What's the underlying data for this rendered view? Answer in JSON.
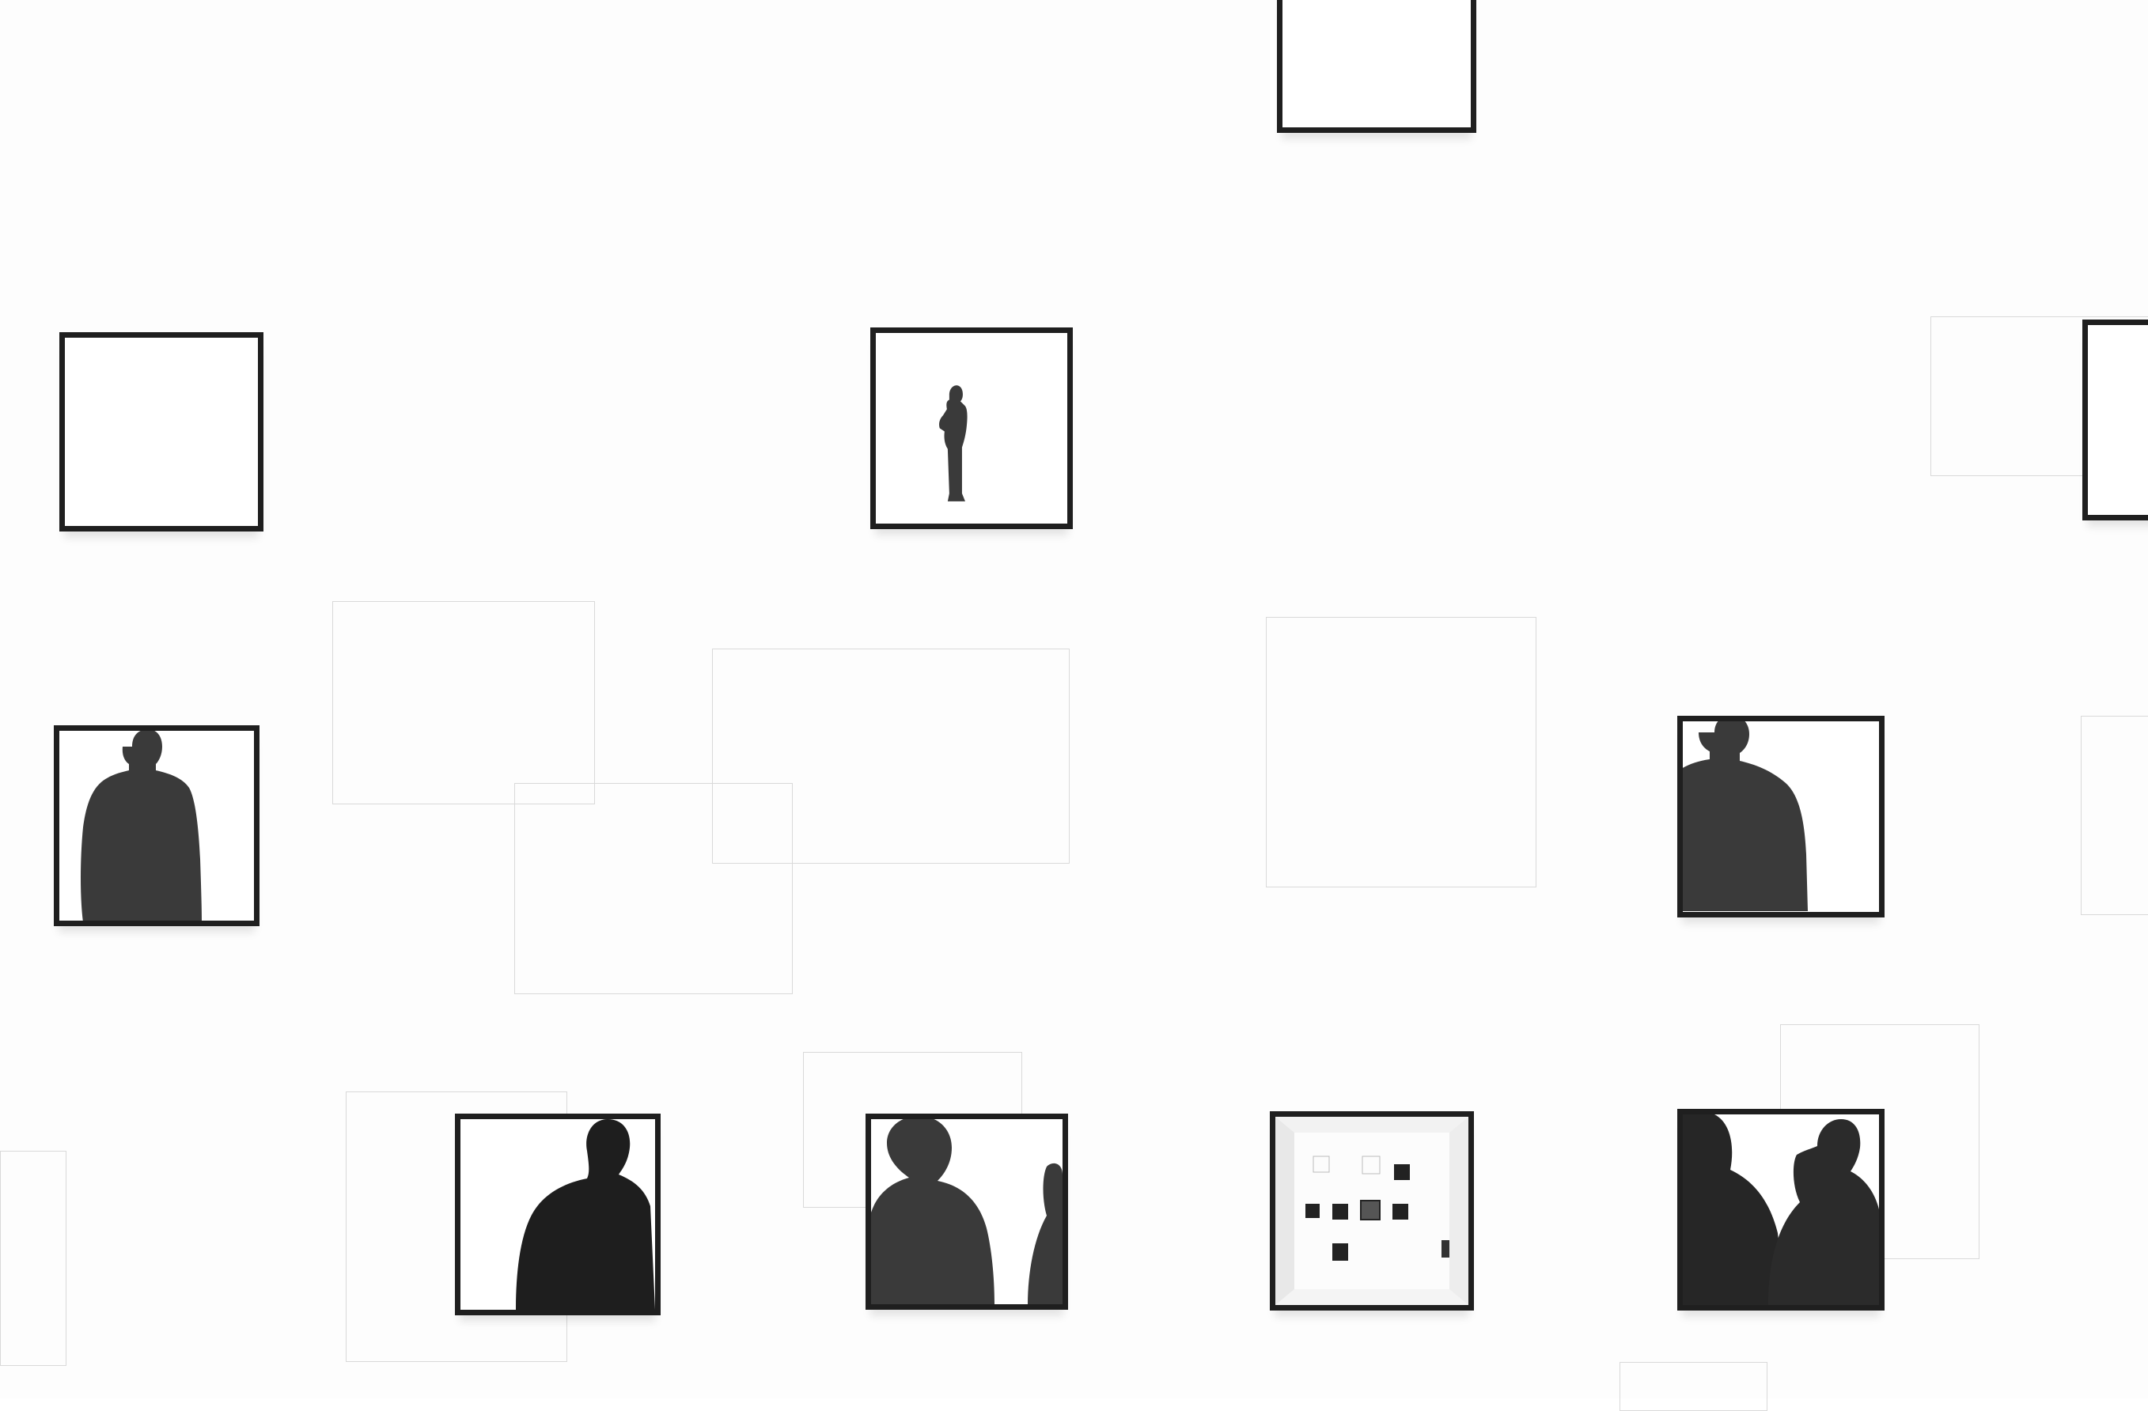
{
  "scene": {
    "subject": "gallery-wall",
    "colors": {
      "wall": "#fdfdfd",
      "frame": "#1f1f1f",
      "silhouette": "#3a3a3a",
      "silhouette_dark": "#1e1e1e",
      "ghost_outline": "#d9d9d9"
    },
    "frames": [
      {
        "id": "frame-top-center",
        "content": "empty"
      },
      {
        "id": "frame-left-upper",
        "content": "empty"
      },
      {
        "id": "frame-center-upper",
        "content": "standing-figure-silhouette"
      },
      {
        "id": "frame-right-edge",
        "content": "empty"
      },
      {
        "id": "frame-left-middle",
        "content": "man-back-silhouette"
      },
      {
        "id": "frame-right-middle",
        "content": "man-back-silhouette"
      },
      {
        "id": "frame-bottom-1",
        "content": "man-dark-suit"
      },
      {
        "id": "frame-bottom-2",
        "content": "two-heads-silhouette"
      },
      {
        "id": "frame-bottom-3",
        "content": "miniature-gallery-wall"
      },
      {
        "id": "frame-bottom-4",
        "content": "group-dark-figures"
      }
    ]
  }
}
